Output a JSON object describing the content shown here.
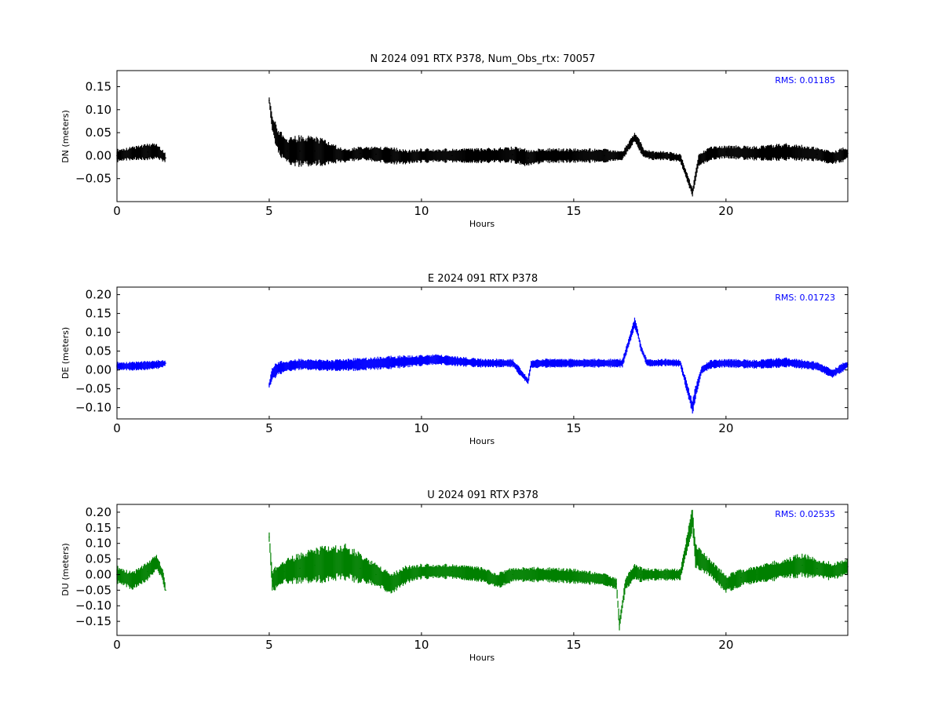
{
  "figure": {
    "x_tick_labels": [
      "0",
      "5",
      "10",
      "15",
      "20"
    ]
  },
  "chart_data": [
    {
      "type": "scatter",
      "title": "N 2024 091 RTX  P378, Num_Obs_rtx: 70057",
      "xlabel": "Hours",
      "ylabel": "DN (meters)",
      "xlim": [
        0,
        24
      ],
      "ylim": [
        -0.1,
        0.185
      ],
      "x_ticks": [
        0,
        5,
        10,
        15,
        20
      ],
      "y_ticks": [
        -0.05,
        0.0,
        0.05,
        0.1,
        0.15
      ],
      "y_tick_labels": [
        "−0.05",
        "0.00",
        "0.05",
        "0.10",
        "0.15"
      ],
      "grid": false,
      "color": "#000000",
      "annotation": "RMS:  0.01185",
      "annotation_color": "#0000ff",
      "series": [
        {
          "x": [
            0,
            0.5,
            1.0,
            1.3,
            1.6,
            5.0,
            5.1,
            5.3,
            5.6,
            6.0,
            6.5,
            7.0,
            7.5,
            8.0,
            8.5,
            9.0,
            9.5,
            10.0,
            11.0,
            12.0,
            13.0,
            13.5,
            14.0,
            15.0,
            16.0,
            16.6,
            17.0,
            17.1,
            17.3,
            17.6,
            18.0,
            18.5,
            18.9,
            19.1,
            19.5,
            20.0,
            21.0,
            22.0,
            23.0,
            23.5,
            24.0
          ],
          "y": [
            0.0,
            0.005,
            0.008,
            0.01,
            -0.005,
            0.12,
            0.07,
            0.03,
            0.01,
            0.01,
            0.01,
            0.005,
            0.0,
            0.005,
            0.003,
            0.0,
            -0.003,
            0.0,
            0.0,
            0.0,
            0.002,
            -0.005,
            0.0,
            0.0,
            0.0,
            0.0,
            0.04,
            0.03,
            0.005,
            0.0,
            0.0,
            -0.005,
            -0.08,
            -0.01,
            0.005,
            0.008,
            0.005,
            0.008,
            0.003,
            -0.005,
            0.005
          ],
          "spread": [
            0.015,
            0.015,
            0.018,
            0.02,
            0.01,
            0.01,
            0.02,
            0.03,
            0.03,
            0.035,
            0.035,
            0.025,
            0.015,
            0.015,
            0.018,
            0.02,
            0.016,
            0.016,
            0.016,
            0.017,
            0.018,
            0.02,
            0.017,
            0.016,
            0.016,
            0.01,
            0.01,
            0.015,
            0.01,
            0.01,
            0.01,
            0.01,
            0.01,
            0.016,
            0.015,
            0.015,
            0.016,
            0.02,
            0.016,
            0.015,
            0.016
          ]
        }
      ]
    },
    {
      "type": "scatter",
      "title": "E 2024 091 RTX  P378",
      "xlabel": "Hours",
      "ylabel": "DE (meters)",
      "xlim": [
        0,
        24
      ],
      "ylim": [
        -0.13,
        0.22
      ],
      "x_ticks": [
        0,
        5,
        10,
        15,
        20
      ],
      "y_ticks": [
        -0.1,
        -0.05,
        0.0,
        0.05,
        0.1,
        0.15,
        0.2
      ],
      "y_tick_labels": [
        "−0.10",
        "−0.05",
        "0.00",
        "0.05",
        "0.10",
        "0.15",
        "0.20"
      ],
      "grid": false,
      "color": "#0000ff",
      "annotation": "RMS:  0.01723",
      "annotation_color": "#0000ff",
      "series": [
        {
          "x": [
            0,
            0.5,
            1.0,
            1.4,
            1.6,
            5.0,
            5.1,
            5.3,
            5.6,
            6.0,
            7.0,
            8.0,
            9.0,
            10.0,
            10.5,
            11.0,
            12.0,
            13.0,
            13.5,
            13.6,
            14.0,
            15.0,
            16.0,
            16.6,
            17.0,
            17.1,
            17.2,
            17.4,
            17.6,
            18.0,
            18.5,
            18.9,
            19.0,
            19.2,
            19.5,
            20.0,
            21.0,
            22.0,
            23.0,
            23.5,
            24.0
          ],
          "y": [
            0.01,
            0.01,
            0.012,
            0.015,
            0.018,
            -0.04,
            -0.01,
            0.005,
            0.01,
            0.015,
            0.012,
            0.015,
            0.02,
            0.025,
            0.028,
            0.024,
            0.018,
            0.018,
            -0.03,
            0.015,
            0.018,
            0.018,
            0.018,
            0.018,
            0.125,
            0.1,
            0.06,
            0.02,
            0.018,
            0.02,
            0.018,
            -0.1,
            -0.06,
            0.0,
            0.015,
            0.018,
            0.015,
            0.02,
            0.01,
            -0.01,
            0.015
          ],
          "spread": [
            0.012,
            0.012,
            0.012,
            0.012,
            0.01,
            0.01,
            0.02,
            0.02,
            0.015,
            0.015,
            0.015,
            0.018,
            0.018,
            0.015,
            0.015,
            0.014,
            0.012,
            0.012,
            0.01,
            0.012,
            0.012,
            0.012,
            0.012,
            0.012,
            0.015,
            0.01,
            0.01,
            0.01,
            0.01,
            0.01,
            0.01,
            0.02,
            0.02,
            0.012,
            0.012,
            0.012,
            0.012,
            0.014,
            0.012,
            0.012,
            0.012
          ]
        }
      ]
    },
    {
      "type": "scatter",
      "title": "U 2024 091 RTX  P378",
      "xlabel": "Hours",
      "ylabel": "DU (meters)",
      "xlim": [
        0,
        24
      ],
      "ylim": [
        -0.195,
        0.225
      ],
      "x_ticks": [
        0,
        5,
        10,
        15,
        20
      ],
      "y_ticks": [
        -0.15,
        -0.1,
        -0.05,
        0.0,
        0.05,
        0.1,
        0.15,
        0.2
      ],
      "y_tick_labels": [
        "−0.15",
        "−0.10",
        "−0.05",
        "0.00",
        "0.05",
        "0.10",
        "0.15",
        "0.20"
      ],
      "grid": false,
      "color": "#008000",
      "annotation": "RMS:  0.02535",
      "annotation_color": "#0000ff",
      "series": [
        {
          "x": [
            0,
            0.5,
            1.0,
            1.3,
            1.5,
            1.6,
            5.0,
            5.1,
            5.5,
            6.0,
            6.5,
            7.0,
            7.5,
            8.0,
            8.5,
            9.0,
            9.5,
            10.0,
            11.0,
            12.0,
            12.5,
            13.0,
            14.0,
            15.0,
            16.0,
            16.4,
            16.5,
            16.7,
            17.0,
            17.2,
            17.5,
            18.0,
            18.5,
            18.9,
            19.0,
            19.5,
            20.0,
            20.5,
            21.0,
            22.0,
            22.5,
            23.0,
            23.5,
            24.0
          ],
          "y": [
            0.0,
            -0.02,
            0.01,
            0.04,
            0.0,
            -0.05,
            0.12,
            -0.02,
            0.01,
            0.02,
            0.03,
            0.035,
            0.04,
            0.02,
            0.0,
            -0.03,
            0.0,
            0.01,
            0.01,
            0.0,
            -0.02,
            0.0,
            0.0,
            -0.005,
            -0.015,
            -0.03,
            -0.16,
            -0.03,
            0.01,
            0.0,
            0.0,
            0.0,
            0.0,
            0.18,
            0.06,
            0.02,
            -0.03,
            -0.01,
            0.0,
            0.02,
            0.03,
            0.02,
            0.01,
            0.025
          ],
          "spread": [
            0.03,
            0.03,
            0.03,
            0.03,
            0.02,
            0.02,
            0.02,
            0.04,
            0.04,
            0.05,
            0.06,
            0.06,
            0.06,
            0.05,
            0.04,
            0.035,
            0.03,
            0.025,
            0.025,
            0.025,
            0.025,
            0.025,
            0.025,
            0.025,
            0.02,
            0.02,
            0.02,
            0.02,
            0.03,
            0.025,
            0.02,
            0.02,
            0.02,
            0.04,
            0.04,
            0.03,
            0.03,
            0.03,
            0.03,
            0.035,
            0.04,
            0.035,
            0.03,
            0.03
          ]
        }
      ]
    }
  ]
}
